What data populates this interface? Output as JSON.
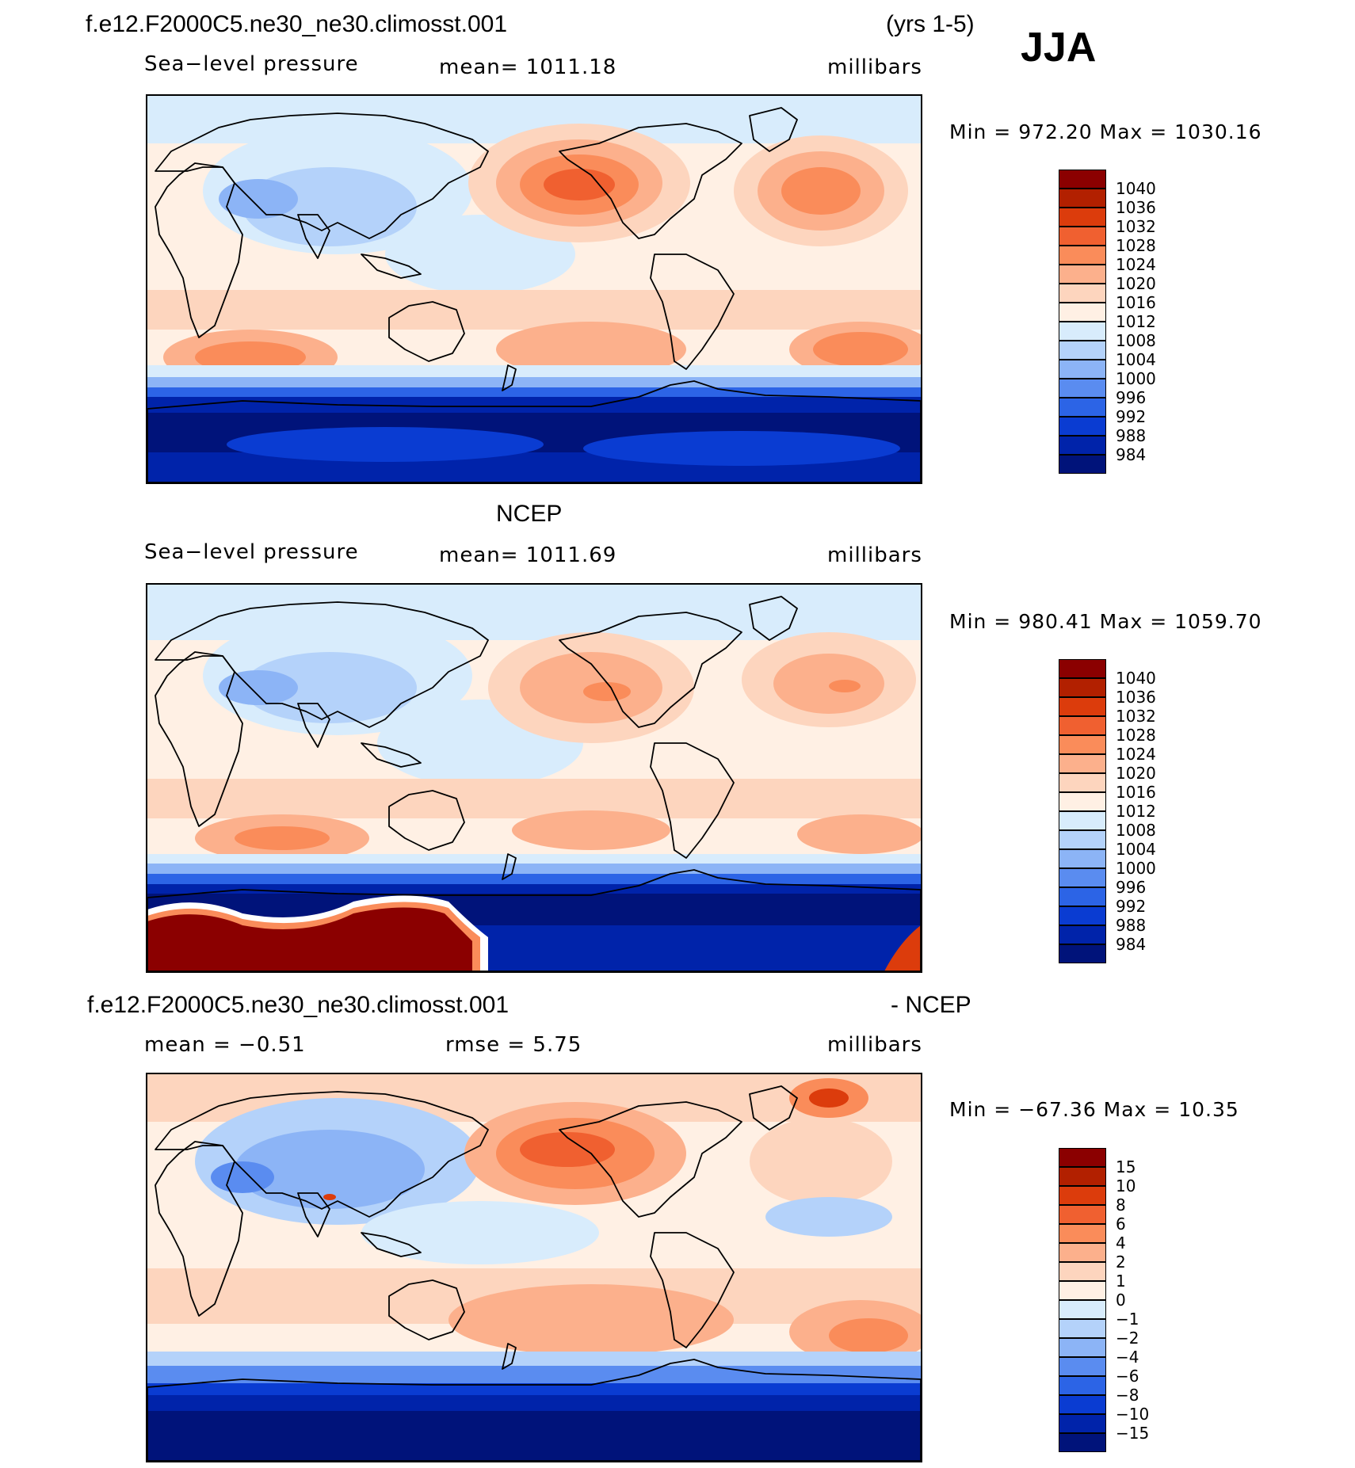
{
  "header": {
    "case_name": "f.e12.F2000C5.ne30_ne30.climosst.001",
    "years": "(yrs 1-5)",
    "season": "JJA"
  },
  "panels": [
    {
      "id": "model",
      "title": "",
      "variable": "Sea−level pressure",
      "stat": "mean=  1011.18",
      "units": "millibars",
      "minmax": "Min  =  972.20  Max  =  1030.16",
      "colorbar_labels": [
        "1040",
        "1036",
        "1032",
        "1028",
        "1024",
        "1020",
        "1016",
        "1012",
        "1008",
        "1004",
        "1000",
        "996",
        "992",
        "988",
        "984"
      ]
    },
    {
      "id": "ncep",
      "title": "NCEP",
      "variable": "Sea−level pressure",
      "stat": "mean=  1011.69",
      "units": "millibars",
      "minmax": "Min  =  980.41  Max  =  1059.70",
      "colorbar_labels": [
        "1040",
        "1036",
        "1032",
        "1028",
        "1024",
        "1020",
        "1016",
        "1012",
        "1008",
        "1004",
        "1000",
        "996",
        "992",
        "988",
        "984"
      ]
    },
    {
      "id": "diff",
      "title_left": "f.e12.F2000C5.ne30_ne30.climosst.001",
      "title_right": "- NCEP",
      "stat_mean": "mean  =   −0.51",
      "stat_rmse": "rmse  =      5.75",
      "units": "millibars",
      "minmax": "Min  =  −67.36  Max  =    10.35",
      "colorbar_labels": [
        "15",
        "10",
        "8",
        "6",
        "4",
        "2",
        "1",
        "0",
        "−1",
        "−2",
        "−4",
        "−6",
        "−8",
        "−10",
        "−15"
      ]
    }
  ],
  "colors": {
    "palette": [
      "#8b0000",
      "#b22000",
      "#dc3c0c",
      "#f06030",
      "#fa8c5a",
      "#fcb08c",
      "#fdd5be",
      "#fff0e4",
      "#d8ecfc",
      "#b4d2fa",
      "#8cb4f6",
      "#5a8cf0",
      "#2c64e6",
      "#0a3cd2",
      "#0023aa",
      "#00137a"
    ],
    "land_outline": "#000000",
    "background": "#ffffff"
  }
}
